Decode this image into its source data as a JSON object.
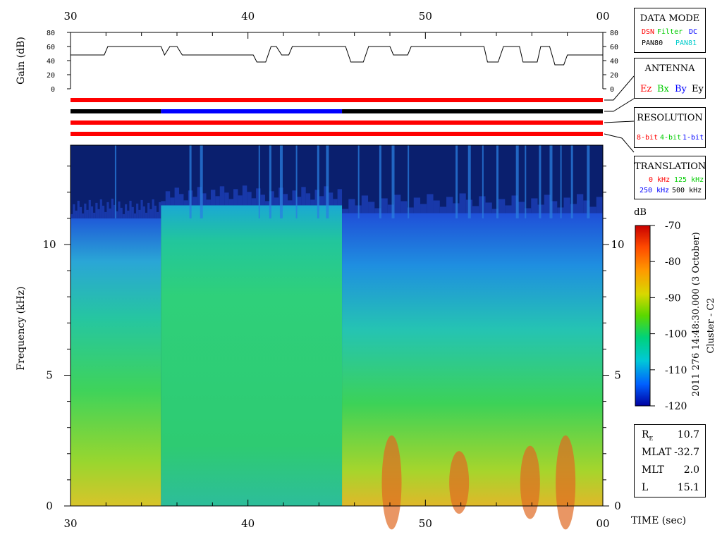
{
  "time_axis": {
    "ticks": [
      "30",
      "40",
      "50",
      "00"
    ],
    "label": "TIME (sec)"
  },
  "gain_panel": {
    "ylabel": "Gain (dB)",
    "ticks": [
      "0",
      "20",
      "40",
      "60",
      "80"
    ]
  },
  "spectrogram_axis": {
    "ylabel": "Frequency (kHz)",
    "ticks": [
      "0",
      "5",
      "10"
    ]
  },
  "legend_boxes": {
    "data_mode": {
      "title": "DATA MODE",
      "items": [
        {
          "text": "DSN",
          "color": "#ff0000"
        },
        {
          "text": "Filter",
          "color": "#00cc00"
        },
        {
          "text": "DC",
          "color": "#0000ff"
        },
        {
          "text": "PAN80",
          "color": "#000000"
        },
        {
          "text": "PAN81",
          "color": "#00cccc"
        }
      ]
    },
    "antenna": {
      "title": "ANTENNA",
      "items": [
        {
          "text": "Ez",
          "color": "#ff0000"
        },
        {
          "text": "Bx",
          "color": "#00cc00"
        },
        {
          "text": "By",
          "color": "#0000ff"
        },
        {
          "text": "Ey",
          "color": "#000000"
        }
      ]
    },
    "resolution": {
      "title": "RESOLUTION",
      "items": [
        {
          "text": "8-bit",
          "color": "#ff0000"
        },
        {
          "text": "4-bit",
          "color": "#00cc00"
        },
        {
          "text": "1-bit",
          "color": "#0000ff"
        }
      ]
    },
    "translation": {
      "title": "TRANSLATION",
      "items": [
        {
          "text": "0 kHz",
          "color": "#ff0000"
        },
        {
          "text": "125 kHz",
          "color": "#00cc00"
        },
        {
          "text": "250 kHz",
          "color": "#0000ff"
        },
        {
          "text": "500 kHz",
          "color": "#000000"
        }
      ]
    }
  },
  "colorbar": {
    "unit": "dB",
    "ticks": [
      "-70",
      "-80",
      "-90",
      "-100",
      "-110",
      "-120"
    ],
    "side_label": "2011 276 14:48:30.000 (3 October)",
    "spacecraft": "Cluster - C2"
  },
  "orbit_info": [
    {
      "label": "R",
      "sub": "E",
      "value": "10.7"
    },
    {
      "label": "MLAT",
      "sub": "",
      "value": "-32.7"
    },
    {
      "label": "MLT",
      "sub": "",
      "value": "2.0"
    },
    {
      "label": "L",
      "sub": "",
      "value": "15.1"
    }
  ],
  "chart_data": {
    "type": "heatmap",
    "xlim": [
      30,
      60
    ],
    "x_ticks": [
      30,
      40,
      50,
      60
    ],
    "ylim_kHz": [
      0,
      13.8
    ],
    "zlim_dB": [
      -120,
      -70
    ],
    "gain_dB": {
      "ylim": [
        0,
        80
      ],
      "points": [
        [
          30,
          48
        ],
        [
          31.9,
          48
        ],
        [
          32.1,
          60
        ],
        [
          35.1,
          60
        ],
        [
          35.3,
          48
        ],
        [
          35.6,
          60
        ],
        [
          36.0,
          60
        ],
        [
          36.3,
          48
        ],
        [
          40.3,
          48
        ],
        [
          40.5,
          38
        ],
        [
          41.0,
          38
        ],
        [
          41.3,
          60
        ],
        [
          41.6,
          60
        ],
        [
          41.9,
          48
        ],
        [
          42.3,
          48
        ],
        [
          42.5,
          60
        ],
        [
          45.5,
          60
        ],
        [
          45.8,
          38
        ],
        [
          46.5,
          38
        ],
        [
          46.8,
          60
        ],
        [
          48.0,
          60
        ],
        [
          48.2,
          48
        ],
        [
          49.0,
          48
        ],
        [
          49.2,
          60
        ],
        [
          53.3,
          60
        ],
        [
          53.5,
          38
        ],
        [
          54.1,
          38
        ],
        [
          54.4,
          60
        ],
        [
          55.0,
          60
        ],
        [
          55.3,
          60
        ],
        [
          55.5,
          38
        ],
        [
          56.3,
          38
        ],
        [
          56.5,
          60
        ],
        [
          57.0,
          60
        ],
        [
          57.3,
          34
        ],
        [
          57.8,
          34
        ],
        [
          58.0,
          48
        ],
        [
          60,
          48
        ]
      ]
    },
    "status_bars": [
      {
        "name": "DATA MODE",
        "segments": [
          {
            "from": 30,
            "to": 60,
            "color": "#ff0000"
          }
        ]
      },
      {
        "name": "ANTENNA",
        "segments": [
          {
            "from": 30,
            "to": 35.1,
            "color": "#000000"
          },
          {
            "from": 35.1,
            "to": 45.3,
            "color": "#0000ff"
          },
          {
            "from": 45.3,
            "to": 60,
            "color": "#000000"
          }
        ]
      },
      {
        "name": "RESOLUTION",
        "segments": [
          {
            "from": 30,
            "to": 60,
            "color": "#ff0000"
          }
        ]
      },
      {
        "name": "TRANSLATION",
        "segments": [
          {
            "from": 30,
            "to": 60,
            "color": "#ff0000"
          }
        ]
      }
    ],
    "regions": [
      {
        "t_from": 30.0,
        "t_to": 35.1,
        "cutoff_kHz": 11.0,
        "intensity": "medium"
      },
      {
        "t_from": 35.1,
        "t_to": 45.3,
        "cutoff_kHz": 11.5,
        "intensity": "uniform-green"
      },
      {
        "t_from": 45.3,
        "t_to": 60.0,
        "cutoff_kHz": 11.2,
        "intensity": "variable"
      }
    ]
  }
}
